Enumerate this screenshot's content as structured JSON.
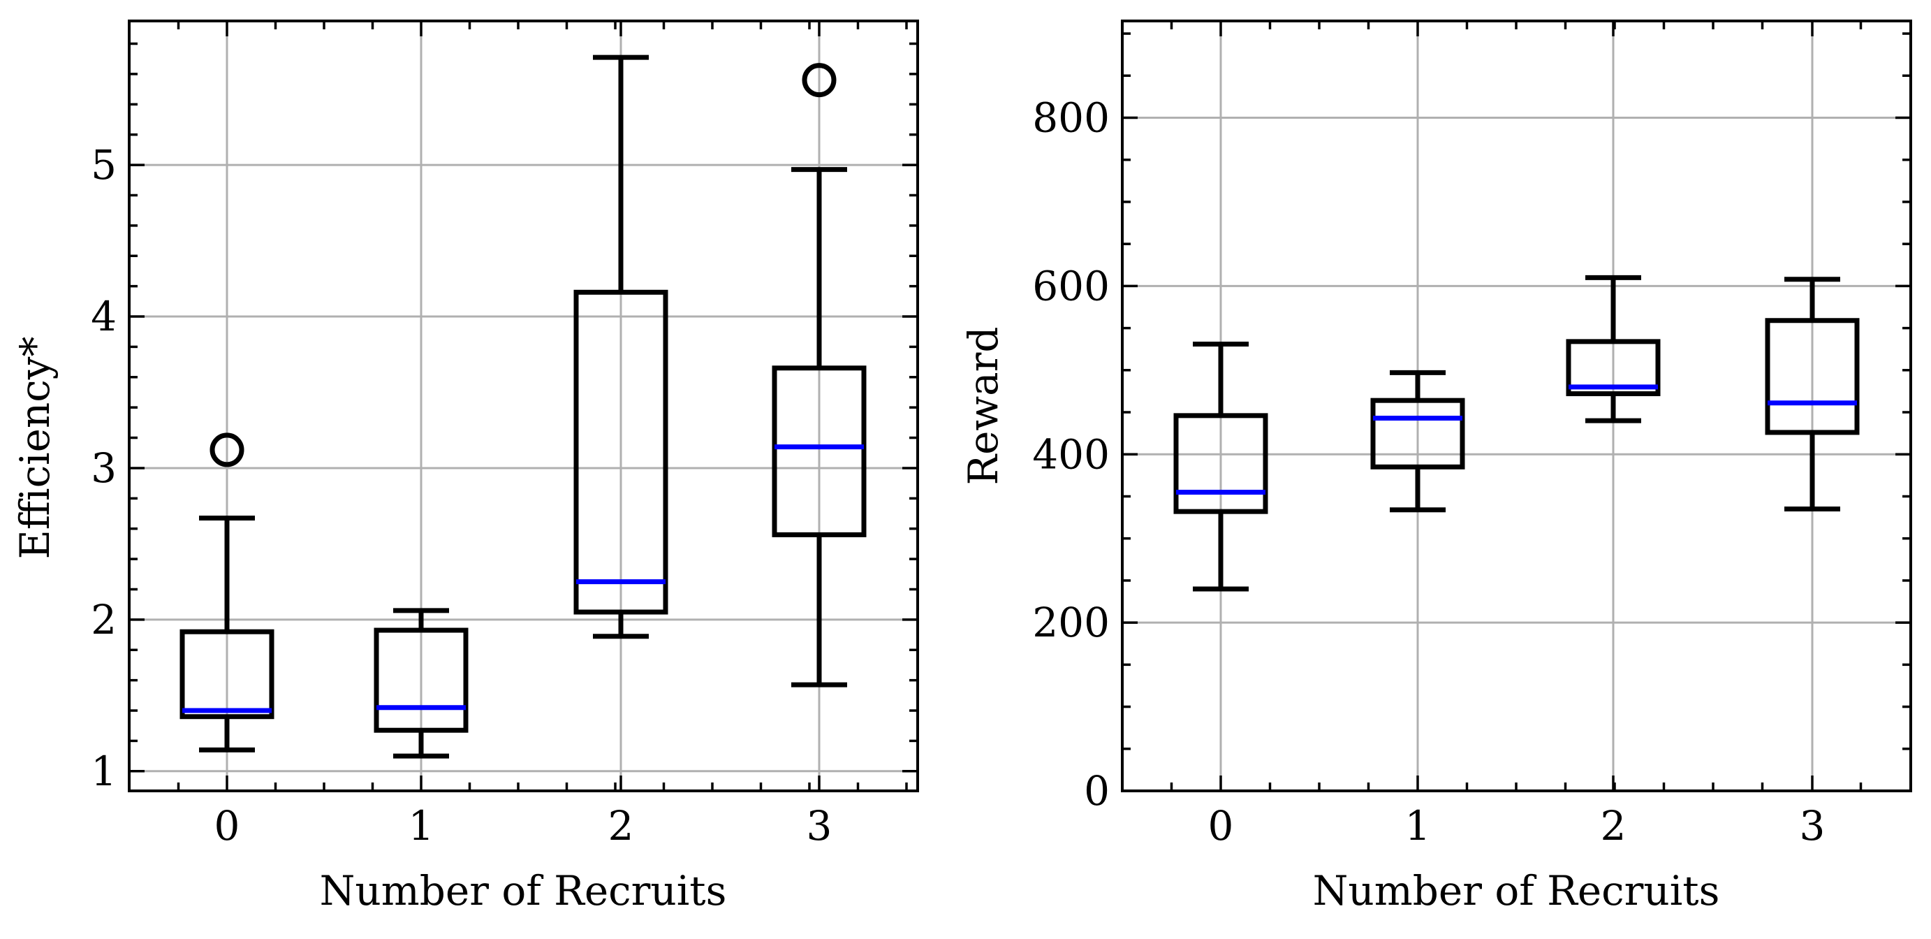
{
  "chart_data": [
    {
      "type": "boxplot",
      "id": "efficiency",
      "xlabel": "Number of Recruits",
      "ylabel": "Efficiency*",
      "categories": [
        "0",
        "1",
        "2",
        "3"
      ],
      "ylim": [
        0.87,
        5.95
      ],
      "yticks": [
        1,
        2,
        3,
        4,
        5
      ],
      "yticks_minor": [
        1.2,
        1.4,
        1.6,
        1.8,
        2.2,
        2.4,
        2.6,
        2.8,
        3.2,
        3.4,
        3.6,
        3.8,
        4.2,
        4.4,
        4.6,
        4.8,
        5.2,
        5.4,
        5.6,
        5.8
      ],
      "grid": true,
      "series": [
        {
          "category": "0",
          "whislo": 1.14,
          "q1": 1.36,
          "med": 1.4,
          "q3": 1.92,
          "whishi": 2.67,
          "fliers": [
            3.12
          ]
        },
        {
          "category": "1",
          "whislo": 1.1,
          "q1": 1.27,
          "med": 1.42,
          "q3": 1.93,
          "whishi": 2.06,
          "fliers": []
        },
        {
          "category": "2",
          "whislo": 1.89,
          "q1": 2.05,
          "med": 2.25,
          "q3": 4.16,
          "whishi": 5.71,
          "fliers": []
        },
        {
          "category": "3",
          "whislo": 1.57,
          "q1": 2.56,
          "med": 3.14,
          "q3": 3.66,
          "whishi": 4.97,
          "fliers": [
            5.56
          ]
        }
      ]
    },
    {
      "type": "boxplot",
      "id": "reward",
      "xlabel": "Number of Recruits",
      "ylabel": "Reward",
      "categories": [
        "0",
        "1",
        "2",
        "3"
      ],
      "ylim": [
        0,
        915
      ],
      "yticks": [
        0,
        200,
        400,
        600,
        800
      ],
      "yticks_minor": [
        50,
        100,
        150,
        250,
        300,
        350,
        450,
        500,
        550,
        650,
        700,
        750,
        850,
        900
      ],
      "grid": true,
      "series": [
        {
          "category": "0",
          "whislo": 240,
          "q1": 332,
          "med": 355,
          "q3": 446,
          "whishi": 531,
          "fliers": []
        },
        {
          "category": "1",
          "whislo": 334,
          "q1": 385,
          "med": 443,
          "q3": 464,
          "whishi": 497,
          "fliers": []
        },
        {
          "category": "2",
          "whislo": 440,
          "q1": 472,
          "med": 480,
          "q3": 534,
          "whishi": 610,
          "fliers": []
        },
        {
          "category": "3",
          "whislo": 335,
          "q1": 426,
          "med": 461,
          "q3": 559,
          "whishi": 608,
          "fliers": []
        }
      ]
    }
  ],
  "colors": {
    "box": "#000000",
    "median": "#0000ff",
    "grid": "#b0b0b0"
  }
}
